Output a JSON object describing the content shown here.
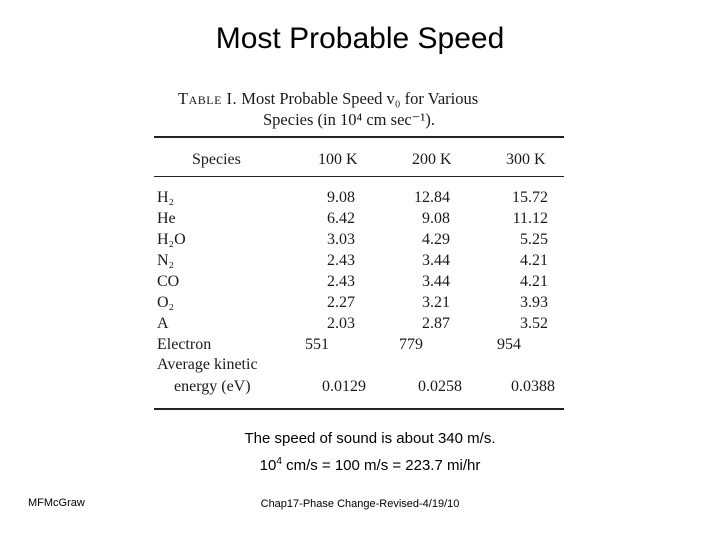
{
  "slide": {
    "title": "Most Probable Speed"
  },
  "table": {
    "caption_label": "Table I.",
    "caption_line1": "Most Probable Speed v₀ for Various",
    "caption_line2": "Species (in 10⁴ cm sec⁻¹).",
    "headers": [
      "Species",
      "100 K",
      "200 K",
      "300 K"
    ],
    "rows": [
      {
        "species": "H₂",
        "v100": "9.08",
        "v200": "12.84",
        "v300": "15.72"
      },
      {
        "species": "He",
        "v100": "6.42",
        "v200": "9.08",
        "v300": "11.12"
      },
      {
        "species": "H₂O",
        "v100": "3.03",
        "v200": "4.29",
        "v300": "5.25"
      },
      {
        "species": "N₂",
        "v100": "2.43",
        "v200": "3.44",
        "v300": "4.21"
      },
      {
        "species": "CO",
        "v100": "2.43",
        "v200": "3.44",
        "v300": "4.21"
      },
      {
        "species": "O₂",
        "v100": "2.27",
        "v200": "3.21",
        "v300": "3.93"
      },
      {
        "species": "A",
        "v100": "2.03",
        "v200": "2.87",
        "v300": "3.52"
      },
      {
        "species": "Electron",
        "v100": "551",
        "v200": "779",
        "v300": "954"
      }
    ],
    "kinetic": {
      "label_line1": "Average kinetic",
      "label_line2": "energy (eV)",
      "v100": "0.0129",
      "v200": "0.0258",
      "v300": "0.0388"
    }
  },
  "notes": {
    "sound": "The speed of sound is about 340 m/s.",
    "conversion_base": "10",
    "conversion_exp": "4",
    "conversion_rest": " cm/s = 100 m/s = 223.7 mi/hr"
  },
  "footer": {
    "author": "MFMcGraw",
    "chapter": "Chap17-Phase Change-Revised-4/19/10"
  }
}
